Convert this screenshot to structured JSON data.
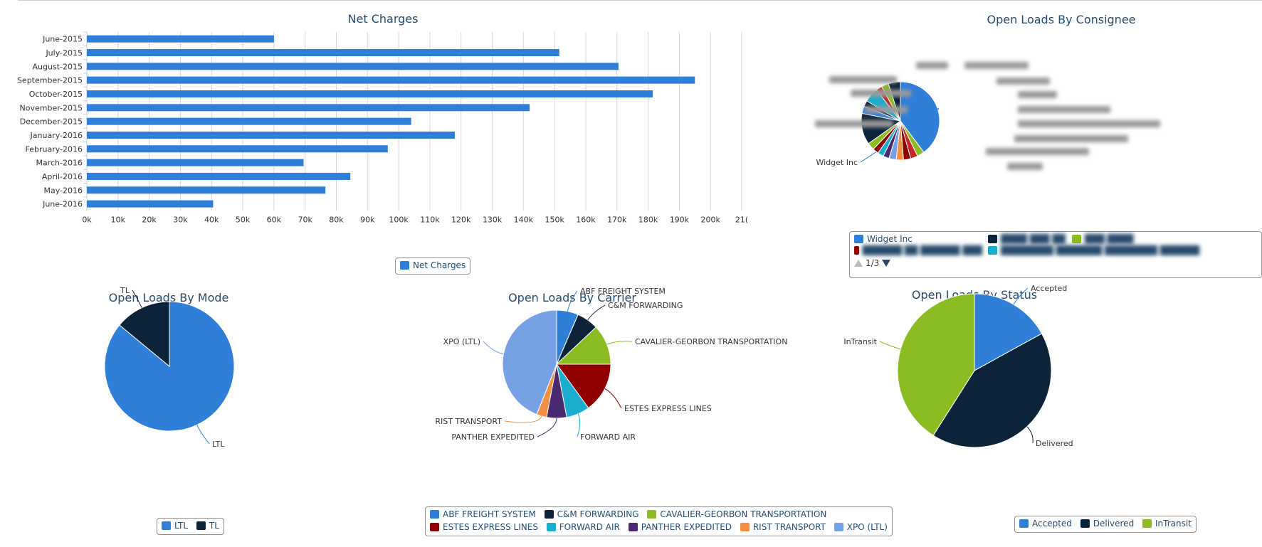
{
  "chart_data": [
    {
      "type": "bar",
      "orientation": "horizontal",
      "title": "Net Charges",
      "categories": [
        "June-2015",
        "July-2015",
        "August-2015",
        "September-2015",
        "October-2015",
        "November-2015",
        "December-2015",
        "January-2016",
        "February-2016",
        "March-2016",
        "April-2016",
        "May-2016",
        "June-2016"
      ],
      "series": [
        {
          "name": "Net Charges",
          "values": [
            60000,
            151500,
            170500,
            195000,
            181500,
            142000,
            104000,
            118000,
            96500,
            69500,
            84500,
            76500,
            40500
          ],
          "color": "#2f7ed8"
        }
      ],
      "xlim": [
        0,
        210000
      ],
      "xticks": [
        "0k",
        "10k",
        "20k",
        "30k",
        "40k",
        "50k",
        "60k",
        "70k",
        "80k",
        "90k",
        "100k",
        "110k",
        "120k",
        "130k",
        "140k",
        "150k",
        "160k",
        "170k",
        "180k",
        "190k",
        "200k",
        "21("
      ],
      "grid": true,
      "legend": "bottom-center"
    },
    {
      "type": "pie",
      "title": "Open Loads By Consignee",
      "slices": [
        {
          "label": "Widget Inc",
          "value": 40,
          "color": "#2f7ed8"
        },
        {
          "label": "",
          "value": 3,
          "color": "#8bbc21"
        },
        {
          "label": "",
          "value": 3,
          "color": "#c42525"
        },
        {
          "label": "",
          "value": 3,
          "color": "#910000"
        },
        {
          "label": "",
          "value": 3,
          "color": "#f28f43"
        },
        {
          "label": "",
          "value": 3,
          "color": "#77a1e5"
        },
        {
          "label": "",
          "value": 2.5,
          "color": "#492970"
        },
        {
          "label": "",
          "value": 2.5,
          "color": "#1aadce"
        },
        {
          "label": "",
          "value": 2.5,
          "color": "#910000"
        },
        {
          "label": "",
          "value": 3,
          "color": "#8bbc21"
        },
        {
          "label": "",
          "value": 13,
          "color": "#0d233a"
        },
        {
          "label": "",
          "value": 3,
          "color": "#2f7ed8"
        },
        {
          "label": "",
          "value": 2.5,
          "color": "#0d233a"
        },
        {
          "label": "",
          "value": 6,
          "color": "#1aadce"
        },
        {
          "label": "",
          "value": 2.5,
          "color": "#c42525"
        },
        {
          "label": "",
          "value": 3,
          "color": "#8bbc21"
        },
        {
          "label": "",
          "value": 5,
          "color": "#0d233a"
        }
      ],
      "legend_items": [
        {
          "label": "Widget Inc",
          "color": "#2f7ed8",
          "blurred": false
        },
        {
          "label": "",
          "color": "#0d233a",
          "blurred": true
        },
        {
          "label": "",
          "color": "#8bbc21",
          "blurred": true
        },
        {
          "label": "",
          "color": "#910000",
          "blurred": true
        },
        {
          "label": "",
          "color": "#1aadce",
          "blurred": true
        }
      ],
      "legend_page": "1/3",
      "legend": "bottom"
    },
    {
      "type": "pie",
      "title": "Open Loads By Mode",
      "slices": [
        {
          "label": "LTL",
          "value": 86,
          "color": "#2f7ed8"
        },
        {
          "label": "TL",
          "value": 14,
          "color": "#0d233a"
        }
      ],
      "legend": "bottom-center"
    },
    {
      "type": "pie",
      "title": "Open Loads By Carrier",
      "slices": [
        {
          "label": "ABF FREIGHT SYSTEM",
          "value": 6.5,
          "color": "#2f7ed8"
        },
        {
          "label": "C&M FORWARDING",
          "value": 6.5,
          "color": "#0d233a"
        },
        {
          "label": "CAVALIER-GEORBON TRANSPORTATION",
          "value": 12,
          "color": "#8bbc21"
        },
        {
          "label": "ESTES EXPRESS LINES",
          "value": 15,
          "color": "#910000"
        },
        {
          "label": "FORWARD AIR",
          "value": 7,
          "color": "#1aadce"
        },
        {
          "label": "PANTHER EXPEDITED",
          "value": 6,
          "color": "#492970"
        },
        {
          "label": "RIST TRANSPORT",
          "value": 3,
          "color": "#f28f43"
        },
        {
          "label": "XPO (LTL)",
          "value": 44,
          "color": "#77a1e5"
        }
      ],
      "legend": "bottom-center"
    },
    {
      "type": "pie",
      "title": "Open Loads By Status",
      "slices": [
        {
          "label": "Accepted",
          "value": 17,
          "color": "#2f7ed8"
        },
        {
          "label": "Delivered",
          "value": 42,
          "color": "#0d233a"
        },
        {
          "label": "InTransit",
          "value": 41,
          "color": "#8bbc21"
        }
      ],
      "legend": "bottom-center"
    }
  ]
}
